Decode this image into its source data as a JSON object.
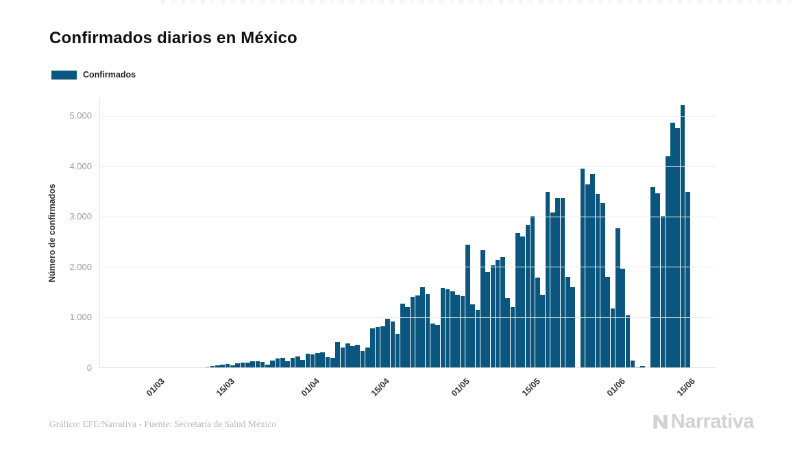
{
  "title": "Confirmados diarios en México",
  "legend": {
    "label": "Confirmados"
  },
  "footer": {
    "credit": "Gráfico: EFE/Narrativa - Fuente: Secretaría de Salud México"
  },
  "logo": {
    "text": "Narrativa"
  },
  "chart_data": {
    "type": "bar",
    "title": "Confirmados diarios en México",
    "xlabel": "",
    "ylabel": "Número de confirmados",
    "grid": "horizontal",
    "legend_position": "top-left",
    "bar_color": "#0a567e",
    "ylim": [
      0,
      5360
    ],
    "right_pad_slots": 5,
    "y_ticks": [
      {
        "value": 0,
        "label": "0"
      },
      {
        "value": 1000,
        "label": "1.000"
      },
      {
        "value": 2000,
        "label": "2.000"
      },
      {
        "value": 3000,
        "label": "3.000"
      },
      {
        "value": 4000,
        "label": "4.000"
      },
      {
        "value": 5000,
        "label": "5.000"
      }
    ],
    "x_ticks": [
      {
        "index": 11,
        "label": "01/03"
      },
      {
        "index": 25,
        "label": "15/03"
      },
      {
        "index": 42,
        "label": "01/04"
      },
      {
        "index": 56,
        "label": "15/04"
      },
      {
        "index": 72,
        "label": "01/05"
      },
      {
        "index": 86,
        "label": "15/05"
      },
      {
        "index": 103,
        "label": "01/06"
      },
      {
        "index": 117,
        "label": "15/06"
      }
    ],
    "series": [
      {
        "name": "Confirmados",
        "color": "#0a567e",
        "x": [
          "19/02",
          "20/02",
          "21/02",
          "22/02",
          "23/02",
          "24/02",
          "25/02",
          "26/02",
          "27/02",
          "28/02",
          "29/02",
          "01/03",
          "02/03",
          "03/03",
          "04/03",
          "05/03",
          "06/03",
          "07/03",
          "08/03",
          "09/03",
          "10/03",
          "11/03",
          "12/03",
          "13/03",
          "14/03",
          "15/03",
          "16/03",
          "17/03",
          "18/03",
          "19/03",
          "20/03",
          "21/03",
          "22/03",
          "23/03",
          "24/03",
          "25/03",
          "26/03",
          "27/03",
          "28/03",
          "29/03",
          "30/03",
          "31/03",
          "01/04",
          "02/04",
          "03/04",
          "04/04",
          "05/04",
          "06/04",
          "07/04",
          "08/04",
          "09/04",
          "10/04",
          "11/04",
          "12/04",
          "13/04",
          "14/04",
          "15/04",
          "16/04",
          "17/04",
          "18/04",
          "19/04",
          "20/04",
          "21/04",
          "22/04",
          "23/04",
          "24/04",
          "25/04",
          "26/04",
          "27/04",
          "28/04",
          "29/04",
          "30/04",
          "01/05",
          "02/05",
          "03/05",
          "04/05",
          "05/05",
          "06/05",
          "07/05",
          "08/05",
          "09/05",
          "10/05",
          "11/05",
          "12/05",
          "13/05",
          "14/05",
          "15/05",
          "16/05",
          "17/05",
          "18/05",
          "19/05",
          "20/05",
          "21/05",
          "22/05",
          "23/05",
          "24/05",
          "25/05",
          "26/05",
          "27/05",
          "28/05",
          "29/05",
          "30/05",
          "31/05",
          "01/06",
          "02/06",
          "03/06",
          "04/06",
          "05/06",
          "06/06",
          "07/06",
          "08/06",
          "09/06",
          "10/06",
          "11/06",
          "12/06",
          "13/06",
          "14/06",
          "15/06"
        ],
        "values": [
          0,
          0,
          0,
          0,
          1,
          1,
          2,
          2,
          3,
          4,
          4,
          3,
          2,
          2,
          3,
          3,
          4,
          4,
          5,
          6,
          10,
          27,
          41,
          60,
          75,
          82,
          50,
          95,
          105,
          115,
          131,
          140,
          118,
          73,
          150,
          186,
          209,
          141,
          200,
          231,
          163,
          286,
          277,
          304,
          317,
          213,
          209,
          517,
          413,
          494,
          435,
          458,
          345,
          413,
          785,
          812,
          830,
          980,
          925,
          685,
          1275,
          1206,
          1420,
          1447,
          1600,
          1470,
          889,
          853,
          1592,
          1560,
          1524,
          1456,
          1435,
          2453,
          1265,
          1152,
          2335,
          1909,
          2036,
          2149,
          2204,
          1388,
          1215,
          2680,
          2612,
          2839,
          3020,
          1796,
          1456,
          3490,
          3090,
          3370,
          3380,
          1805,
          1600,
          0,
          3960,
          3640,
          3845,
          3460,
          3285,
          1805,
          1183,
          2770,
          1977,
          1047,
          150,
          27,
          45,
          0,
          3588,
          3474,
          3020,
          4200,
          4867,
          4766,
          5220,
          3497
        ]
      }
    ]
  }
}
